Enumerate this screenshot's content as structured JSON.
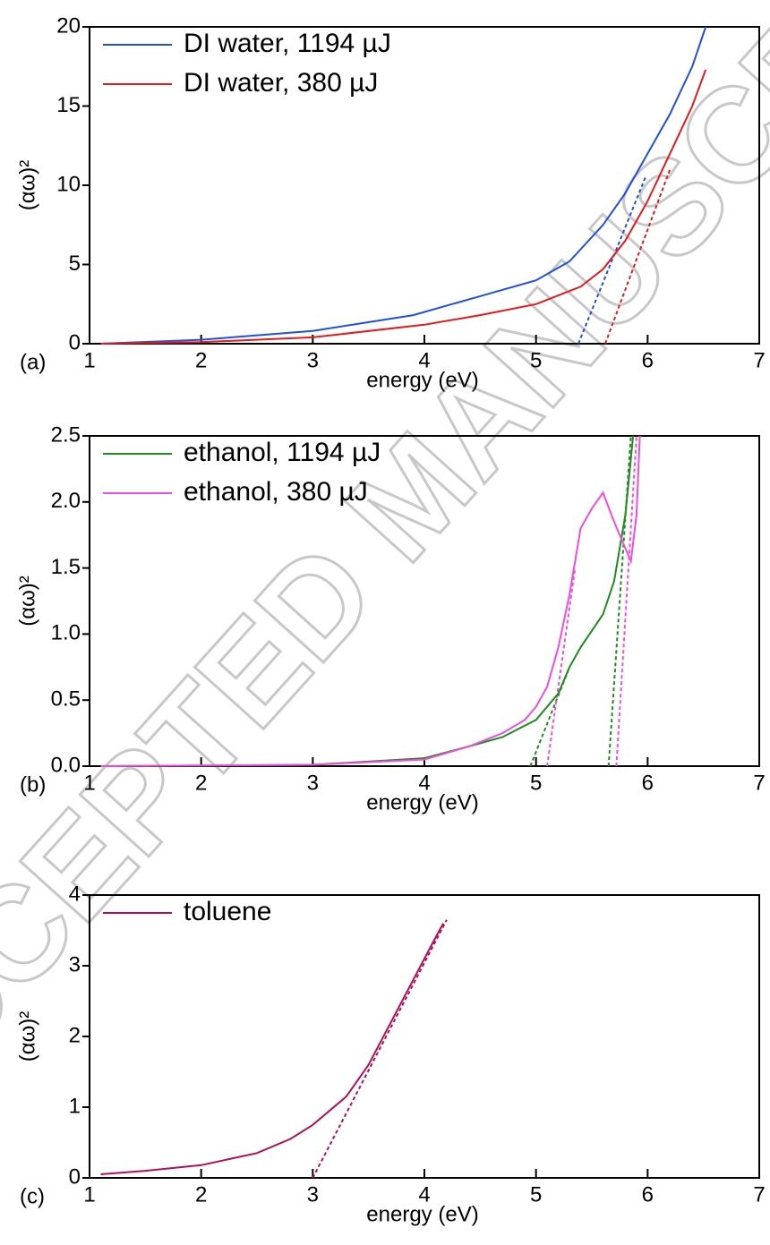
{
  "watermark": "ACCEPTED MANUSCRIPT",
  "chart_data": [
    {
      "type": "line",
      "panel_label": "(a)",
      "xlabel": "energy (eV)",
      "ylabel": "(αω)²",
      "xlim": [
        1,
        7
      ],
      "xticks": [
        1,
        2,
        3,
        4,
        5,
        6,
        7
      ],
      "ylim": [
        0,
        20
      ],
      "yticks": [
        0,
        5,
        10,
        15,
        20
      ],
      "legend": "upper left",
      "series": [
        {
          "name": "DI water, 1194 µJ",
          "color": "#1f4fe0",
          "x": [
            1.1,
            2,
            3,
            3.9,
            4.5,
            5,
            5.3,
            5.6,
            5.8,
            6.0,
            6.2,
            6.4,
            6.52
          ],
          "values": [
            0,
            0.25,
            0.8,
            1.8,
            3,
            4,
            5.2,
            7.5,
            9.5,
            12,
            14.5,
            17.5,
            20
          ]
        },
        {
          "name": "DI water, 380 µJ",
          "color": "#e41a1a",
          "x": [
            1.1,
            2,
            3,
            4,
            4.5,
            5,
            5.4,
            5.6,
            5.8,
            6.0,
            6.2,
            6.4,
            6.52
          ],
          "values": [
            0,
            0.1,
            0.4,
            1.2,
            1.8,
            2.5,
            3.6,
            4.7,
            6.5,
            9,
            12,
            15,
            17.3
          ]
        }
      ],
      "fits": [
        {
          "color": "#1f4fe0",
          "line_style": "dashed",
          "x": [
            5.38,
            5.98
          ],
          "values": [
            0,
            10.5
          ]
        },
        {
          "color": "#e41a1a",
          "line_style": "dashed",
          "x": [
            5.62,
            6.2
          ],
          "values": [
            0,
            11
          ]
        }
      ]
    },
    {
      "type": "line",
      "panel_label": "(b)",
      "xlabel": "energy (eV)",
      "ylabel": "(αω)²",
      "xlim": [
        1,
        7
      ],
      "xticks": [
        1,
        2,
        3,
        4,
        5,
        6,
        7
      ],
      "ylim": [
        0,
        2.5
      ],
      "yticks": [
        {
          "value": 0,
          "label": "0.0"
        },
        0.5,
        {
          "value": 1,
          "label": "1.0"
        },
        1.5,
        {
          "value": 2,
          "label": "2.0"
        },
        2.5
      ],
      "legend": "upper left",
      "series": [
        {
          "name": "ethanol, 1194 µJ",
          "color": "#1e8c1e",
          "x": [
            1.1,
            3,
            4,
            4.4,
            4.7,
            5.0,
            5.2,
            5.3,
            5.4,
            5.6,
            5.7,
            5.8,
            5.87
          ],
          "values": [
            0,
            0.01,
            0.06,
            0.15,
            0.22,
            0.35,
            0.55,
            0.75,
            0.9,
            1.15,
            1.4,
            1.9,
            2.5
          ]
        },
        {
          "name": "ethanol, 380 µJ",
          "color": "#f04ce0",
          "x": [
            1.1,
            3,
            4,
            4.4,
            4.7,
            4.9,
            5.0,
            5.1,
            5.2,
            5.3,
            5.4,
            5.5,
            5.6,
            5.7,
            5.85,
            5.9,
            5.93
          ],
          "values": [
            0,
            0.01,
            0.05,
            0.15,
            0.25,
            0.35,
            0.45,
            0.6,
            0.9,
            1.3,
            1.8,
            1.95,
            2.07,
            1.85,
            1.55,
            1.9,
            2.5
          ]
        }
      ],
      "fits": [
        {
          "color": "#1e8c1e",
          "line_style": "dashed",
          "x": [
            4.95,
            5.3
          ],
          "values": [
            0,
            0.75
          ]
        },
        {
          "color": "#1e8c1e",
          "line_style": "dashed",
          "x": [
            5.65,
            5.85
          ],
          "values": [
            0,
            2.5
          ]
        },
        {
          "color": "#f04ce0",
          "line_style": "dashed",
          "x": [
            5.1,
            5.35
          ],
          "values": [
            0,
            1.5
          ]
        },
        {
          "color": "#f04ce0",
          "line_style": "dashed",
          "x": [
            5.72,
            5.9
          ],
          "values": [
            0,
            2.5
          ]
        }
      ]
    },
    {
      "type": "line",
      "panel_label": "(c)",
      "xlabel": "energy (eV)",
      "ylabel": "(αω)²",
      "xlim": [
        1,
        7
      ],
      "xticks": [
        1,
        2,
        3,
        4,
        5,
        6,
        7
      ],
      "ylim": [
        0,
        4
      ],
      "yticks": [
        0,
        1,
        2,
        3,
        4
      ],
      "legend": "upper left",
      "series": [
        {
          "name": "toluene",
          "color": "#b0105a",
          "x": [
            1.1,
            1.5,
            2,
            2.5,
            2.8,
            3,
            3.3,
            3.5,
            3.7,
            3.9,
            4.1,
            4.17
          ],
          "values": [
            0.05,
            0.1,
            0.18,
            0.35,
            0.55,
            0.75,
            1.15,
            1.6,
            2.2,
            2.8,
            3.4,
            3.6
          ]
        }
      ],
      "fits": [
        {
          "color": "#b0105a",
          "line_style": "dashed",
          "x": [
            3.0,
            4.2
          ],
          "values": [
            0,
            3.65
          ]
        }
      ]
    }
  ]
}
